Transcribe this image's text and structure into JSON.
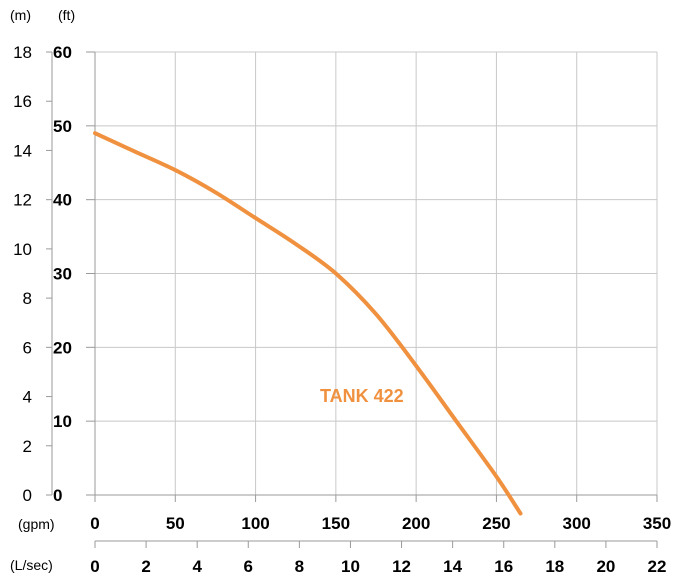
{
  "chart_data": {
    "type": "line",
    "units": {
      "m": "(m)",
      "ft": "(ft)",
      "gpm": "(gpm)",
      "lsec": "(L/sec)"
    },
    "left_axis_m": {
      "ticks": [
        "0",
        "2",
        "4",
        "6",
        "8",
        "10",
        "12",
        "14",
        "16",
        "18"
      ],
      "ylim": [
        0,
        18
      ]
    },
    "left_axis_ft": {
      "ticks": [
        "0",
        "10",
        "20",
        "30",
        "40",
        "50",
        "60"
      ],
      "ylim": [
        0,
        60
      ]
    },
    "x_axis_gpm": {
      "ticks": [
        "0",
        "50",
        "100",
        "150",
        "200",
        "250",
        "300",
        "350"
      ],
      "xlim": [
        0,
        350
      ]
    },
    "x_axis_lsec": {
      "ticks": [
        "0",
        "2",
        "4",
        "6",
        "8",
        "10",
        "12",
        "14",
        "16",
        "18",
        "20",
        "22"
      ],
      "xlim": [
        0,
        22
      ]
    },
    "grid": true,
    "series": [
      {
        "name": "TANK 422",
        "color": "#f0913f",
        "x_gpm": [
          0,
          25,
          50,
          75,
          100,
          125,
          150,
          175,
          200,
          225,
          250,
          265
        ],
        "y_ft": [
          49,
          46.5,
          44,
          41,
          37.5,
          34,
          30,
          24.5,
          17.5,
          10,
          2.5,
          -2.5
        ]
      }
    ]
  }
}
